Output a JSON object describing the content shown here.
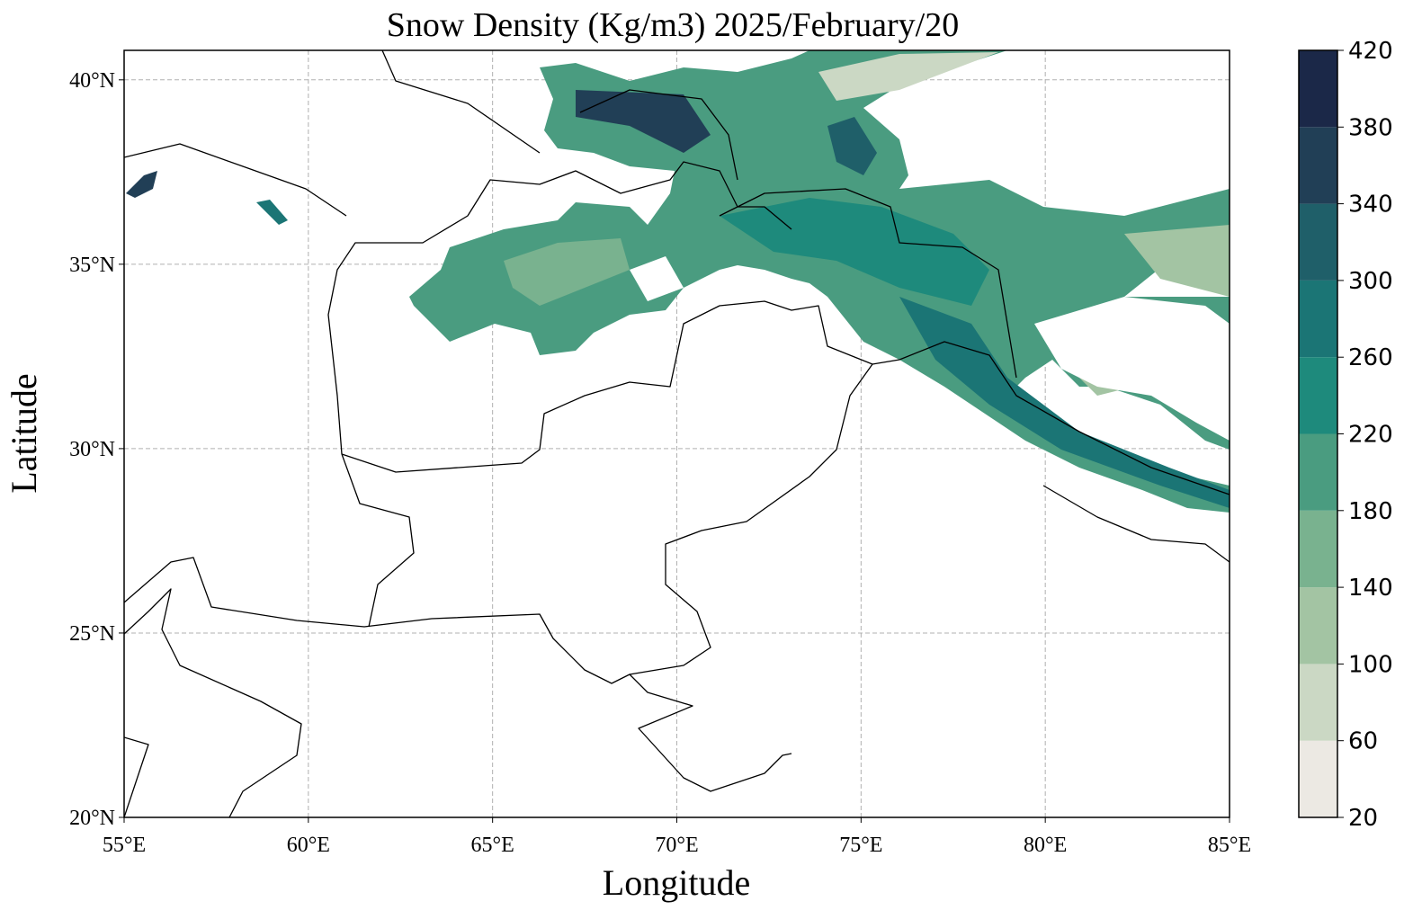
{
  "map": {
    "title": "Snow Density (Kg/m3) 2025/February/20",
    "xlabel": "Longitude",
    "ylabel": "Latitude",
    "xlim": [
      55,
      85
    ],
    "ylim": [
      20,
      40.8
    ],
    "xticks": [
      {
        "value": 55,
        "label": "55°E"
      },
      {
        "value": 60,
        "label": "60°E"
      },
      {
        "value": 65,
        "label": "65°E"
      },
      {
        "value": 70,
        "label": "70°E"
      },
      {
        "value": 75,
        "label": "75°E"
      },
      {
        "value": 80,
        "label": "80°E"
      },
      {
        "value": 85,
        "label": "85°E"
      }
    ],
    "yticks": [
      {
        "value": 20,
        "label": "20°N"
      },
      {
        "value": 25,
        "label": "25°N"
      },
      {
        "value": 30,
        "label": "30°N"
      },
      {
        "value": 35,
        "label": "35°N"
      },
      {
        "value": 40,
        "label": "40°N"
      }
    ],
    "grid": true,
    "colorbar": {
      "ticks": [
        20,
        60,
        100,
        140,
        180,
        220,
        260,
        300,
        340,
        380,
        420
      ],
      "colors": [
        "#ece9e3",
        "#cbd8c4",
        "#a3c4a3",
        "#79b28f",
        "#4a9c80",
        "#1e8a7c",
        "#1b7575",
        "#1f5f69",
        "#213f56",
        "#1b2848"
      ]
    }
  }
}
